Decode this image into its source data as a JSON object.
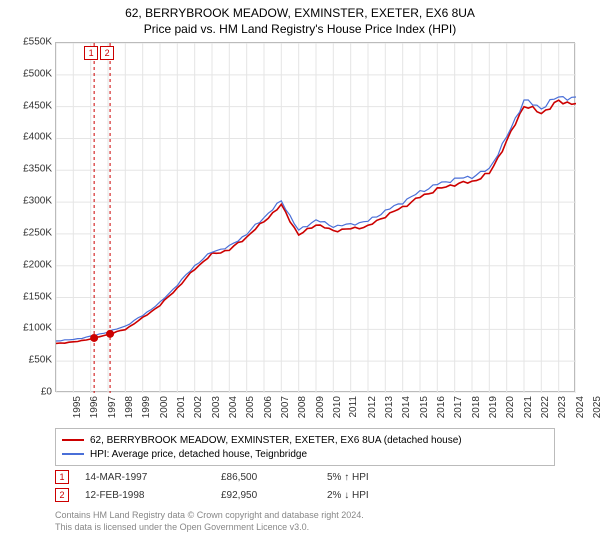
{
  "title": "62, BERRYBROOK MEADOW, EXMINSTER, EXETER, EX6 8UA",
  "subtitle": "Price paid vs. HM Land Registry's House Price Index (HPI)",
  "chart": {
    "type": "line",
    "background_color": "#ffffff",
    "border_color": "#bbbbbb",
    "grid_color": "#e5e5e5",
    "x": {
      "label_fontsize": 10,
      "label_color": "#333333",
      "years": [
        1995,
        1996,
        1997,
        1998,
        1999,
        2000,
        2001,
        2002,
        2003,
        2004,
        2005,
        2006,
        2007,
        2008,
        2009,
        2010,
        2011,
        2012,
        2013,
        2014,
        2015,
        2016,
        2017,
        2018,
        2019,
        2020,
        2021,
        2022,
        2023,
        2024,
        2025
      ]
    },
    "y": {
      "min": 0,
      "max": 550000,
      "step": 50000,
      "label_fontsize": 10,
      "label_color": "#333333",
      "ticks": [
        "£0",
        "£50K",
        "£100K",
        "£150K",
        "£200K",
        "£250K",
        "£300K",
        "£350K",
        "£400K",
        "£450K",
        "£500K",
        "£550K"
      ]
    },
    "series": [
      {
        "name": "property",
        "color": "#cc0000",
        "width": 1.6,
        "label": "62, BERRYBROOK MEADOW, EXMINSTER, EXETER, EX6 8UA (detached house)",
        "values": [
          78000,
          80000,
          85000,
          92000,
          100000,
          118000,
          138000,
          165000,
          195000,
          218000,
          225000,
          245000,
          270000,
          295000,
          248000,
          265000,
          255000,
          258000,
          262000,
          278000,
          292000,
          308000,
          320000,
          328000,
          332000,
          345000,
          395000,
          452000,
          440000,
          458000,
          455000
        ]
      },
      {
        "name": "hpi",
        "color": "#4a6fd8",
        "width": 1.2,
        "label": "HPI: Average price, detached house, Teignbridge",
        "values": [
          82000,
          84000,
          89000,
          96000,
          105000,
          122000,
          142000,
          170000,
          200000,
          222000,
          230000,
          250000,
          276000,
          302000,
          255000,
          272000,
          262000,
          265000,
          270000,
          286000,
          300000,
          316000,
          328000,
          336000,
          340000,
          352000,
          402000,
          460000,
          448000,
          466000,
          462000
        ]
      }
    ],
    "vlines": [
      {
        "year_frac": 1997.2,
        "color": "#cc0000",
        "dash": "3,3"
      },
      {
        "year_frac": 1998.12,
        "color": "#cc0000",
        "dash": "3,3"
      }
    ],
    "markers": [
      {
        "year_frac": 1997.2,
        "value": 86500,
        "color": "#cc0000",
        "label": "1"
      },
      {
        "year_frac": 1998.12,
        "value": 92950,
        "color": "#cc0000",
        "label": "2"
      }
    ]
  },
  "legend": {
    "items": [
      {
        "color": "#cc0000",
        "label": "62, BERRYBROOK MEADOW, EXMINSTER, EXETER, EX6 8UA (detached house)"
      },
      {
        "color": "#4a6fd8",
        "label": "HPI: Average price, detached house, Teignbridge"
      }
    ]
  },
  "events": [
    {
      "n": "1",
      "date": "14-MAR-1997",
      "price": "£86,500",
      "pct": "5% ↑ HPI",
      "color": "#cc0000"
    },
    {
      "n": "2",
      "date": "12-FEB-1998",
      "price": "£92,950",
      "pct": "2% ↓ HPI",
      "color": "#cc0000"
    }
  ],
  "footer": {
    "line1": "Contains HM Land Registry data © Crown copyright and database right 2024.",
    "line2": "This data is licensed under the Open Government Licence v3.0."
  }
}
